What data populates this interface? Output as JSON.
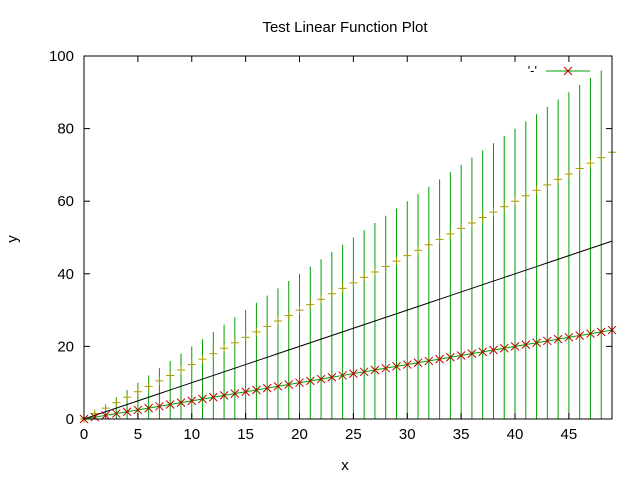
{
  "chart_data": {
    "type": "line",
    "title": "Test Linear Function Plot",
    "xlabel": "x",
    "ylabel": "y",
    "xlim": [
      0,
      49
    ],
    "ylim": [
      0,
      100
    ],
    "x_ticks": [
      0,
      5,
      10,
      15,
      20,
      25,
      30,
      35,
      40,
      45
    ],
    "y_ticks": [
      0,
      20,
      40,
      60,
      80,
      100
    ],
    "grid": false,
    "legend_position": "top-right",
    "x": [
      0,
      1,
      2,
      3,
      4,
      5,
      6,
      7,
      8,
      9,
      10,
      11,
      12,
      13,
      14,
      15,
      16,
      17,
      18,
      19,
      20,
      21,
      22,
      23,
      24,
      25,
      26,
      27,
      28,
      29,
      30,
      31,
      32,
      33,
      34,
      35,
      36,
      37,
      38,
      39,
      40,
      41,
      42,
      43,
      44,
      45,
      46,
      47,
      48,
      49
    ],
    "series": [
      {
        "name": "'-'",
        "kind": "line_points",
        "line_color": "#00a000",
        "marker_color": "#c00000",
        "marker": "x",
        "y": [
          0,
          0.5,
          1,
          1.5,
          2,
          2.5,
          3,
          3.5,
          4,
          4.5,
          5,
          5.5,
          6,
          6.5,
          7,
          7.5,
          8,
          8.5,
          9,
          9.5,
          10,
          10.5,
          11,
          11.5,
          12,
          12.5,
          13,
          13.5,
          14,
          14.5,
          15,
          15.5,
          16,
          16.5,
          17,
          17.5,
          18,
          18.5,
          19,
          19.5,
          20,
          20.5,
          21,
          21.5,
          22,
          22.5,
          23,
          23.5,
          24,
          24.5
        ]
      },
      {
        "kind": "line",
        "line_color": "#000000",
        "y": [
          0,
          1,
          2,
          3,
          4,
          5,
          6,
          7,
          8,
          9,
          10,
          11,
          12,
          13,
          14,
          15,
          16,
          17,
          18,
          19,
          20,
          21,
          22,
          23,
          24,
          25,
          26,
          27,
          28,
          29,
          30,
          31,
          32,
          33,
          34,
          35,
          36,
          37,
          38,
          39,
          40,
          41,
          42,
          43,
          44,
          45,
          46,
          47,
          48,
          49
        ]
      },
      {
        "kind": "errorbars",
        "color": "#00a000",
        "center_marker": "+",
        "center_color": "#a0a000",
        "y": [
          0,
          1.5,
          3,
          4.5,
          6,
          7.5,
          9,
          10.5,
          12,
          13.5,
          15,
          16.5,
          18,
          19.5,
          21,
          22.5,
          24,
          25.5,
          27,
          28.5,
          30,
          31.5,
          33,
          34.5,
          36,
          37.5,
          39,
          40.5,
          42,
          43.5,
          45,
          46.5,
          48,
          49.5,
          51,
          52.5,
          54,
          55.5,
          57,
          58.5,
          60,
          61.5,
          63,
          64.5,
          66,
          67.5,
          69,
          70.5,
          72,
          73.5
        ],
        "ylow": [
          0,
          0,
          0,
          0,
          0,
          0,
          0,
          0,
          0,
          0,
          0,
          0,
          0,
          0,
          0,
          0,
          0,
          0,
          0,
          0,
          0,
          0,
          0,
          0,
          0,
          0,
          0,
          0,
          0,
          0,
          0,
          0,
          0,
          0,
          0,
          0,
          0,
          0,
          0,
          0,
          0,
          0,
          0,
          0,
          0,
          0,
          0,
          0,
          0,
          0
        ],
        "yhigh": [
          0,
          2,
          4,
          6,
          8,
          10,
          12,
          14,
          16,
          18,
          20,
          22,
          24,
          26,
          28,
          30,
          32,
          34,
          36,
          38,
          40,
          42,
          44,
          46,
          48,
          50,
          52,
          54,
          56,
          58,
          60,
          62,
          64,
          66,
          68,
          70,
          72,
          74,
          76,
          78,
          80,
          82,
          84,
          86,
          88,
          90,
          92,
          94,
          96,
          98
        ]
      }
    ]
  }
}
